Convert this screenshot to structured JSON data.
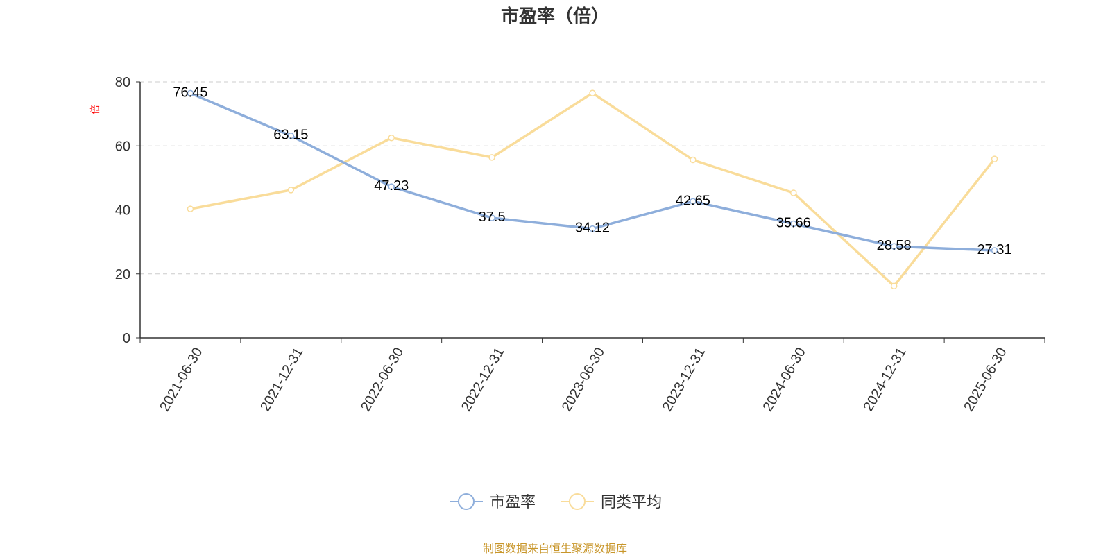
{
  "chart_data": {
    "type": "line",
    "title": "市盈率（倍）",
    "y_unit": "倍",
    "ylim": [
      0,
      80
    ],
    "y_ticks": [
      0,
      20,
      40,
      60,
      80
    ],
    "grid": true,
    "legend_position": "bottom-center",
    "categories": [
      "2021-06-30",
      "2021-12-31",
      "2022-06-30",
      "2022-12-31",
      "2023-06-30",
      "2023-12-31",
      "2024-06-30",
      "2024-12-31",
      "2025-06-30"
    ],
    "series": [
      {
        "name": "市盈率",
        "color": "#8eaedb",
        "values": [
          76.45,
          63.15,
          47.23,
          37.5,
          34.12,
          42.65,
          35.66,
          28.58,
          27.31
        ],
        "labels": [
          "76.45",
          "63.15",
          "47.23",
          "37.5",
          "34.12",
          "42.65",
          "35.66",
          "28.58",
          "27.31"
        ],
        "show_labels": true
      },
      {
        "name": "同类平均",
        "color": "#f9dc9a",
        "values": [
          40.3,
          46.2,
          62.5,
          56.4,
          76.5,
          55.6,
          45.3,
          16.2,
          55.9
        ],
        "show_labels": false
      }
    ],
    "source": "制图数据来自恒生聚源数据库",
    "unit_color": "#ff0000",
    "source_color": "#c8962a"
  }
}
